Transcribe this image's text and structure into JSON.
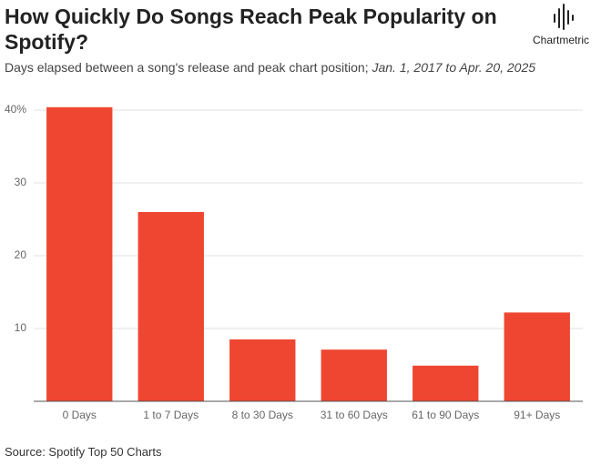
{
  "chart_data": {
    "type": "bar",
    "title": "How Quickly Do Songs Reach Peak Popularity on Spotify?",
    "subtitle": "Days elapsed between a song's release and peak chart position; ",
    "subtitle_dates": "Jan. 1, 2017 to Apr. 20, 2025",
    "source": "Source: Spotify Top 50 Charts",
    "brand": "Chartmetric",
    "categories": [
      "0 Days",
      "1 to 7 Days",
      "8 to 30 Days",
      "31 to 60 Days",
      "61 to 90 Days",
      "91+ Days"
    ],
    "values": [
      40.4,
      26,
      8.5,
      7.1,
      4.9,
      12.2
    ],
    "color": "#ee4631",
    "ylim": [
      0,
      41
    ],
    "yticks": [
      10,
      20,
      30,
      {
        "value": 40,
        "label": "40%"
      }
    ],
    "grid": true
  }
}
